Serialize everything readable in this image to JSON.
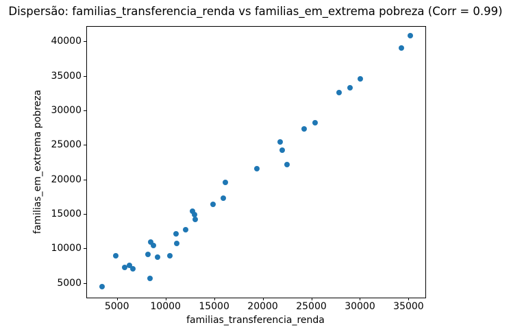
{
  "title": "Dispersão: familias_transferencia_renda vs familias_em_extrema pobreza (Corr = 0.99)",
  "chart_data": {
    "type": "scatter",
    "title": "Dispersão: familias_transferencia_renda vs familias_em_extrema pobreza (Corr = 0.99)",
    "xlabel": "familias_transferencia_renda",
    "ylabel": "familias_em_extrema pobreza",
    "xlim": [
      1850,
      36660
    ],
    "ylim": [
      2990,
      42210
    ],
    "xticks": [
      5000,
      10000,
      15000,
      20000,
      25000,
      30000,
      35000
    ],
    "yticks": [
      5000,
      10000,
      15000,
      20000,
      25000,
      30000,
      35000,
      40000
    ],
    "grid": false,
    "legend": "none",
    "marker_color": "#1f77b4",
    "background_color": "#ffffff",
    "correlation": 0.99,
    "points": [
      [
        3400,
        4600
      ],
      [
        4800,
        9000
      ],
      [
        5700,
        7400
      ],
      [
        6200,
        7700
      ],
      [
        6600,
        7200
      ],
      [
        8300,
        5800
      ],
      [
        8100,
        9200
      ],
      [
        9100,
        8800
      ],
      [
        8400,
        11000
      ],
      [
        8700,
        10500
      ],
      [
        10400,
        9000
      ],
      [
        11000,
        12200
      ],
      [
        11100,
        10800
      ],
      [
        12000,
        12800
      ],
      [
        12700,
        15500
      ],
      [
        12900,
        15000
      ],
      [
        13000,
        14300
      ],
      [
        14800,
        16500
      ],
      [
        15900,
        17400
      ],
      [
        16100,
        19700
      ],
      [
        19300,
        21700
      ],
      [
        21700,
        25500
      ],
      [
        21900,
        24300
      ],
      [
        22400,
        22300
      ],
      [
        24200,
        27400
      ],
      [
        25300,
        28300
      ],
      [
        27800,
        32700
      ],
      [
        28900,
        33400
      ],
      [
        30000,
        34700
      ],
      [
        34200,
        39100
      ],
      [
        35100,
        40900
      ]
    ]
  }
}
